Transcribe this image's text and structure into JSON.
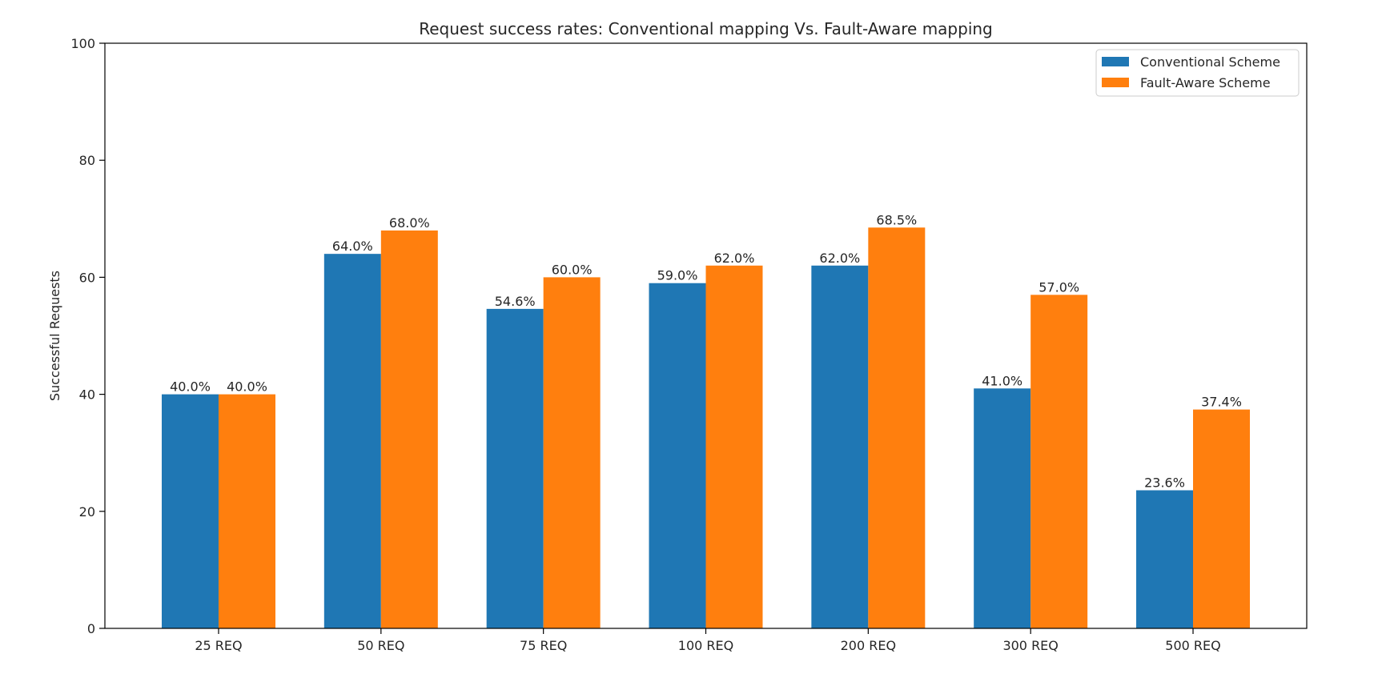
{
  "chart_data": {
    "type": "bar",
    "title": "Request success rates: Conventional mapping Vs. Fault-Aware mapping",
    "xlabel": "",
    "ylabel": "Successful Requests",
    "ylim": [
      0,
      100
    ],
    "yticks": [
      0,
      20,
      40,
      60,
      80,
      100
    ],
    "yticks_text": [
      "0",
      "20",
      "40",
      "60",
      "80",
      "100"
    ],
    "grid": false,
    "legend_position": "top-right",
    "categories": [
      "25 REQ",
      "50 REQ",
      "75 REQ",
      "100 REQ",
      "200 REQ",
      "300 REQ",
      "500 REQ"
    ],
    "series": [
      {
        "name": "Conventional Scheme",
        "color": "#1f77b4",
        "values": [
          40.0,
          64.0,
          54.6,
          59.0,
          62.0,
          41.0,
          23.6
        ],
        "labels": [
          "40.0%",
          "64.0%",
          "54.6%",
          "59.0%",
          "62.0%",
          "41.0%",
          "23.6%"
        ]
      },
      {
        "name": "Fault-Aware Scheme",
        "color": "#ff7f0e",
        "values": [
          40.0,
          68.0,
          60.0,
          62.0,
          68.5,
          57.0,
          37.4
        ],
        "labels": [
          "40.0%",
          "68.0%",
          "60.0%",
          "62.0%",
          "68.5%",
          "57.0%",
          "37.4%"
        ]
      }
    ]
  }
}
